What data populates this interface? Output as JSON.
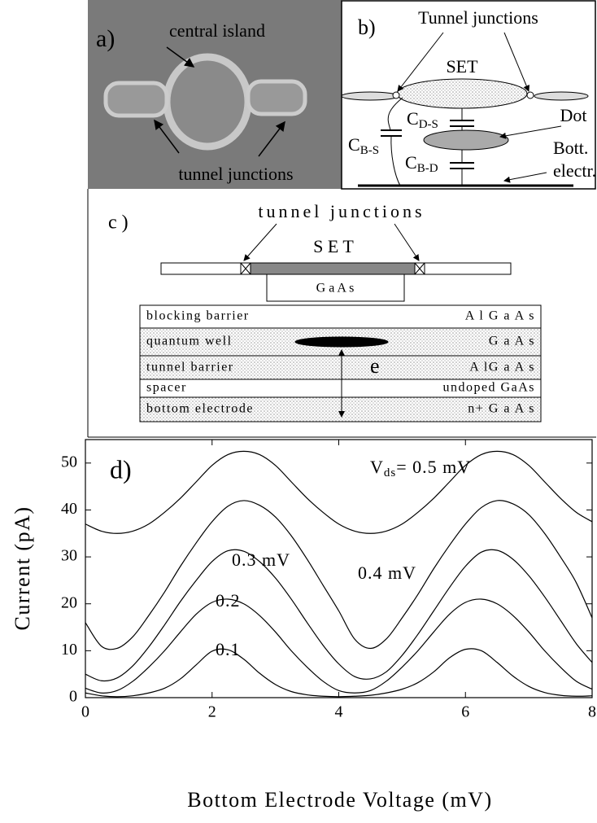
{
  "panel_a": {
    "label": "a)",
    "annotations": [
      "central island",
      "tunnel junctions"
    ]
  },
  "panel_b": {
    "label": "b)",
    "junctions": "Tunnel junctions",
    "set": "SET",
    "dot": "Dot",
    "bottom": [
      "Bott.",
      "electr."
    ],
    "capacitors": [
      {
        "main": "C",
        "sub": "D-S"
      },
      {
        "main": "C",
        "sub": "B-S"
      },
      {
        "main": "C",
        "sub": "B-D"
      }
    ]
  },
  "panel_c": {
    "label": "c )",
    "junctions": "tunnel junctions",
    "set": "S E T",
    "gaas": "G a A s",
    "electron": "e",
    "layers": [
      {
        "name": "blocking barrier",
        "material": "A l G a A s"
      },
      {
        "name": "quantum well",
        "material": "G a A s"
      },
      {
        "name": "tunnel barrier",
        "material": "A lG a A s"
      },
      {
        "name": "spacer",
        "material": "undoped GaAs"
      },
      {
        "name": "bottom electrode",
        "material": "n+  G a A s"
      }
    ]
  },
  "chart_data": {
    "type": "line",
    "label": "d)",
    "xlabel": "Bottom Electrode Voltage (mV)",
    "ylabel": "Current (pA)",
    "xlim": [
      0,
      8
    ],
    "xticks": [
      0,
      2,
      4,
      6,
      8
    ],
    "ylim": [
      0,
      55
    ],
    "yticks": [
      0,
      10,
      20,
      30,
      40,
      50
    ],
    "x": [
      0,
      0.25,
      0.5,
      0.75,
      1,
      1.25,
      1.5,
      1.75,
      2,
      2.25,
      2.5,
      2.75,
      3,
      3.25,
      3.5,
      3.75,
      4,
      4.25,
      4.5,
      4.75,
      5,
      5.25,
      5.5,
      5.75,
      6,
      6.25,
      6.5,
      6.75,
      7,
      7.25,
      7.5,
      7.75,
      8
    ],
    "series": [
      {
        "name": "0.1",
        "color": "#000",
        "values": [
          1.0,
          0.4,
          0.2,
          0.4,
          1.0,
          2.0,
          4.0,
          7.0,
          9.9,
          10.2,
          8.2,
          5.2,
          2.8,
          1.3,
          0.6,
          0.3,
          0.2,
          0.3,
          0.5,
          1.0,
          1.8,
          3.2,
          5.5,
          8.5,
          10.3,
          10.0,
          7.5,
          4.6,
          2.4,
          1.1,
          0.5,
          0.3,
          0.4
        ]
      },
      {
        "name": "0.2",
        "color": "#000",
        "values": [
          2.0,
          1.0,
          1.5,
          3.5,
          6.5,
          10,
          14,
          17.8,
          20.3,
          21,
          20,
          17.5,
          14,
          10,
          6.5,
          3.5,
          1.5,
          1.0,
          1.5,
          3.5,
          6.5,
          10,
          14,
          17.8,
          20.3,
          21,
          20,
          17.5,
          14,
          10,
          6.5,
          3.5,
          1.8
        ]
      },
      {
        "name": "0.3 mV",
        "color": "#000",
        "values": [
          5,
          3.6,
          4.2,
          6.8,
          10.8,
          15.5,
          20.5,
          25,
          29,
          31.3,
          31.2,
          29,
          25.5,
          21,
          16,
          11.2,
          7.2,
          4.5,
          4,
          5.5,
          9,
          13.5,
          18.5,
          23.5,
          28,
          31,
          31.4,
          29.5,
          26,
          21.5,
          16.5,
          11.5,
          7.5
        ]
      },
      {
        "name": "0.4 mV",
        "color": "#000",
        "values": [
          16,
          11,
          10.5,
          13,
          17.5,
          22.5,
          28,
          33,
          37.5,
          40.8,
          42,
          41,
          38.5,
          34.5,
          29.5,
          24,
          18.5,
          12.5,
          10.5,
          12.5,
          17,
          22,
          27.5,
          32.5,
          37,
          40.5,
          42,
          41.3,
          39,
          35,
          30,
          24.5,
          17
        ]
      },
      {
        "name_main": "V",
        "name_sub": "ds",
        "name": "= 0.5 mV",
        "color": "#000",
        "values": [
          37,
          35.5,
          35,
          35.5,
          37,
          39.5,
          42.5,
          46,
          49.5,
          51.8,
          52.5,
          51.8,
          49.5,
          46,
          42.5,
          39.5,
          37,
          35.5,
          35,
          35.5,
          37,
          39.5,
          42.5,
          46,
          49.5,
          51.8,
          52.5,
          51.8,
          49.5,
          46,
          42.5,
          39.5,
          37.5
        ]
      }
    ]
  }
}
